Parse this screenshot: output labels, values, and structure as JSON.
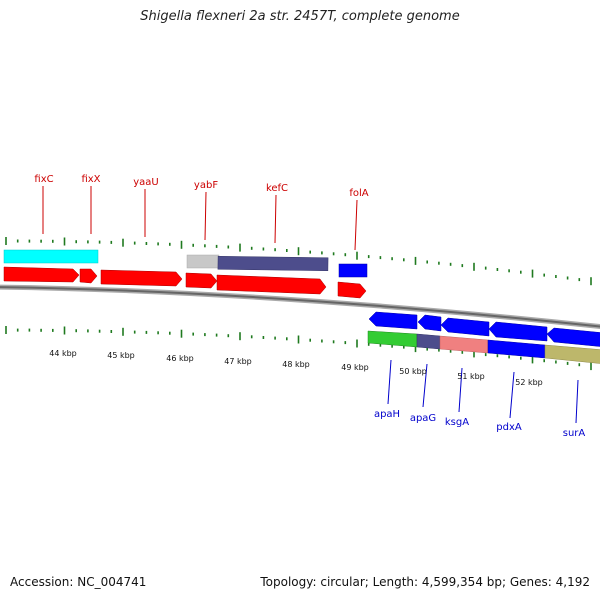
{
  "title": "Shigella flexneri 2a str. 2457T, complete genome",
  "footer": {
    "accession": "Accession: NC_004741",
    "summary": "Topology: circular; Length: 4,599,354 bp; Genes: 4,192"
  },
  "colors": {
    "top_label": "#cc0000",
    "bottom_label": "#0000cc",
    "tick": "#1f7a1f",
    "backbone": "#777777"
  },
  "scale": {
    "unit": "kbp",
    "labels": [
      "44 kbp",
      "45 kbp",
      "46 kbp",
      "47 kbp",
      "48 kbp",
      "49 kbp",
      "50 kbp",
      "51 kbp",
      "52 kbp"
    ]
  },
  "gene_labels_top": [
    "fixC",
    "fixX",
    "yaaU",
    "yabF",
    "kefC",
    "folA"
  ],
  "gene_labels_bottom": [
    "apaH",
    "apaG",
    "ksgA",
    "pdxA",
    "surA"
  ],
  "features": [
    {
      "name": "fixC-upper",
      "track": "upper-outer",
      "color": "#00ffff"
    },
    {
      "name": "yabF-upper",
      "track": "upper-outer",
      "color": "#c0c0c0"
    },
    {
      "name": "kefC-upper",
      "track": "upper-outer",
      "color": "#4d4d8c"
    },
    {
      "name": "folA-upper",
      "track": "upper-outer",
      "color": "#0000ff"
    },
    {
      "name": "fixC",
      "track": "upper-inner",
      "color": "#ff0000"
    },
    {
      "name": "fixX",
      "track": "upper-inner",
      "color": "#ff0000"
    },
    {
      "name": "yaaU",
      "track": "upper-inner",
      "color": "#ff0000"
    },
    {
      "name": "yabF",
      "track": "upper-inner",
      "color": "#ff0000"
    },
    {
      "name": "kefC",
      "track": "upper-inner",
      "color": "#ff0000"
    },
    {
      "name": "folA",
      "track": "upper-inner",
      "color": "#ff0000"
    },
    {
      "name": "apaH",
      "track": "lower-inner",
      "color": "#0000ff"
    },
    {
      "name": "apaG",
      "track": "lower-inner",
      "color": "#0000ff"
    },
    {
      "name": "ksgA",
      "track": "lower-inner",
      "color": "#0000ff"
    },
    {
      "name": "pdxA",
      "track": "lower-inner",
      "color": "#0000ff"
    },
    {
      "name": "surA",
      "track": "lower-inner",
      "color": "#0000ff"
    },
    {
      "name": "apaH-lower",
      "track": "lower-outer",
      "color": "#33cc33"
    },
    {
      "name": "apaG-lower",
      "track": "lower-outer",
      "color": "#4d4d8c"
    },
    {
      "name": "ksgA-lower",
      "track": "lower-outer",
      "color": "#f08080"
    },
    {
      "name": "pdxA-lower",
      "track": "lower-outer",
      "color": "#0000ff"
    },
    {
      "name": "surA-lower",
      "track": "lower-outer",
      "color": "#bdb76b"
    }
  ]
}
